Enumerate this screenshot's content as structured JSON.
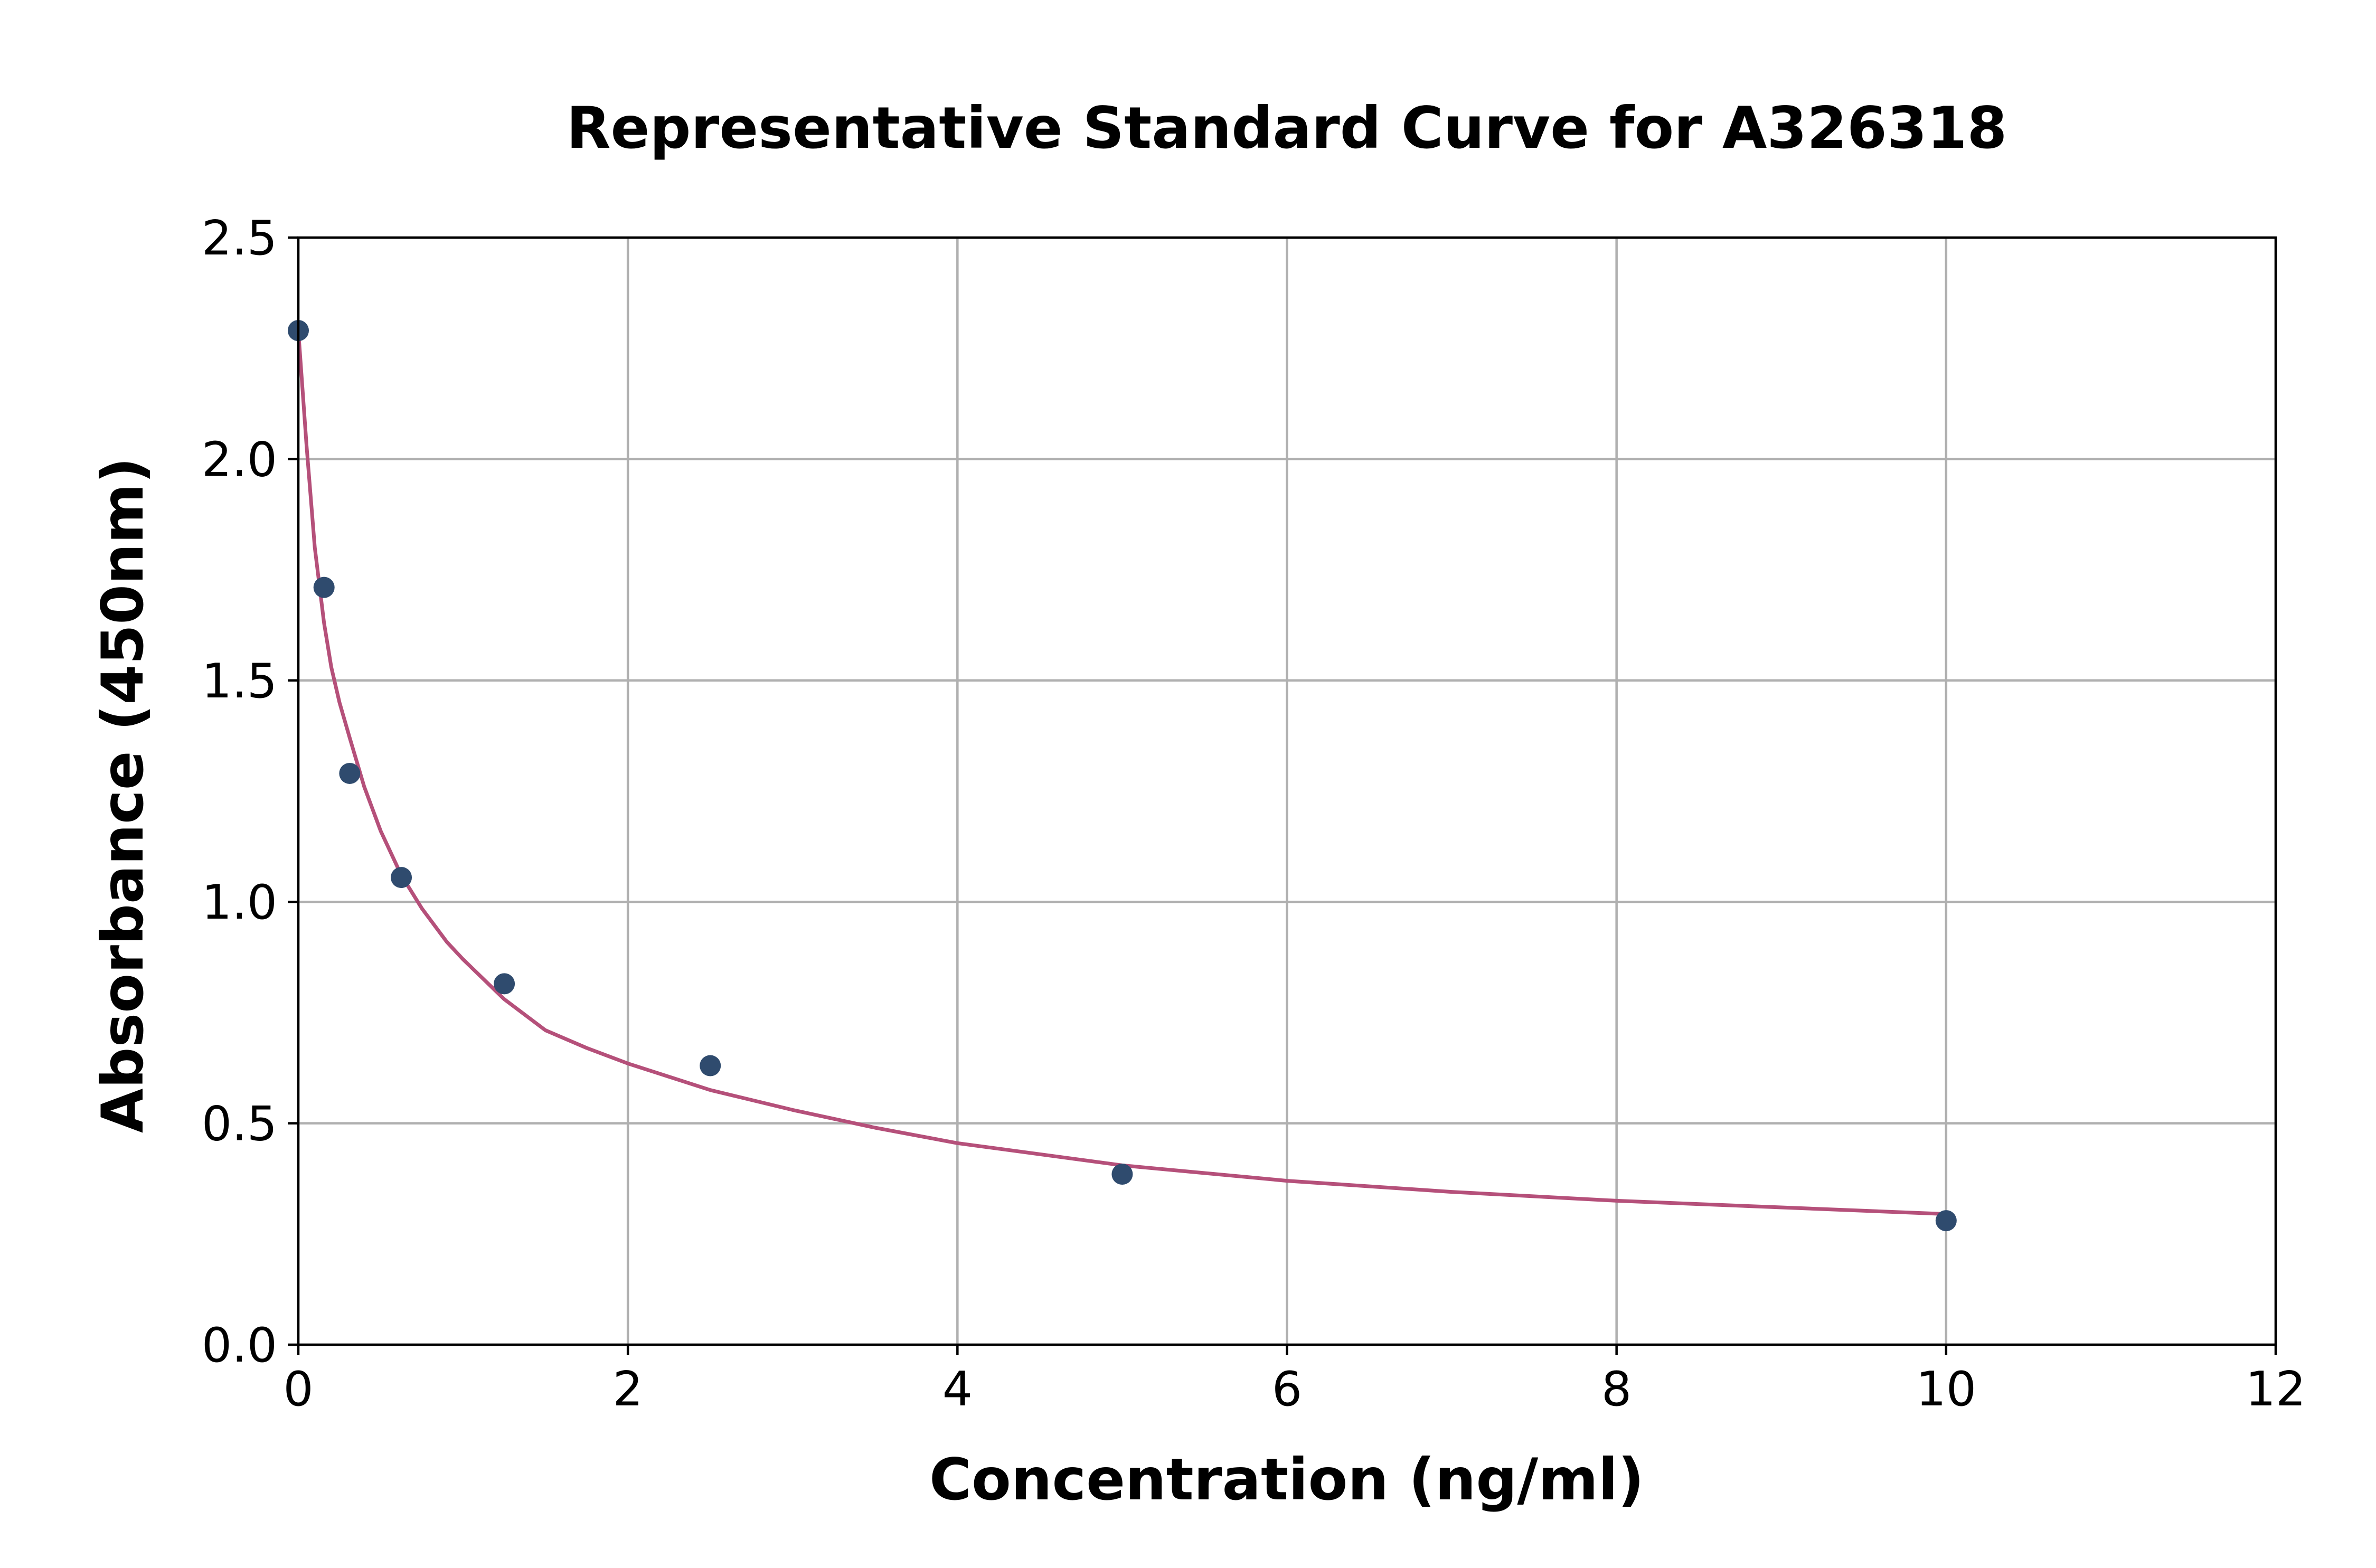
{
  "chart_data": {
    "type": "scatter",
    "title": "Representative Standard Curve for A326318",
    "xlabel": "Concentration (ng/ml)",
    "ylabel": "Absorbance (450nm)",
    "xlim": [
      0,
      12
    ],
    "ylim": [
      0,
      2.5
    ],
    "xticks": [
      "0",
      "2",
      "4",
      "6",
      "8",
      "10",
      "12"
    ],
    "yticks": [
      "0.0",
      "0.5",
      "1.0",
      "1.5",
      "2.0",
      "2.5"
    ],
    "grid": true,
    "colors": {
      "points": "#2f4b6e",
      "curve": "#b5507a"
    },
    "series": [
      {
        "type": "scatter",
        "x": [
          0,
          0.156,
          0.312,
          0.625,
          1.25,
          2.5,
          5,
          10
        ],
        "y": [
          2.29,
          1.71,
          1.29,
          1.055,
          0.815,
          0.63,
          0.385,
          0.28
        ]
      },
      {
        "type": "line",
        "x": [
          0,
          0.05,
          0.1,
          0.156,
          0.2,
          0.25,
          0.312,
          0.4,
          0.5,
          0.625,
          0.75,
          0.9,
          1.0,
          1.25,
          1.5,
          1.75,
          2.0,
          2.5,
          3.0,
          3.5,
          4.0,
          5.0,
          6.0,
          7.0,
          8.0,
          9.0,
          10.0
        ],
        "y": [
          2.29,
          2.03,
          1.8,
          1.63,
          1.53,
          1.45,
          1.37,
          1.26,
          1.16,
          1.06,
          0.985,
          0.91,
          0.87,
          0.78,
          0.71,
          0.67,
          0.635,
          0.575,
          0.53,
          0.49,
          0.455,
          0.405,
          0.37,
          0.345,
          0.325,
          0.31,
          0.295
        ]
      }
    ]
  }
}
